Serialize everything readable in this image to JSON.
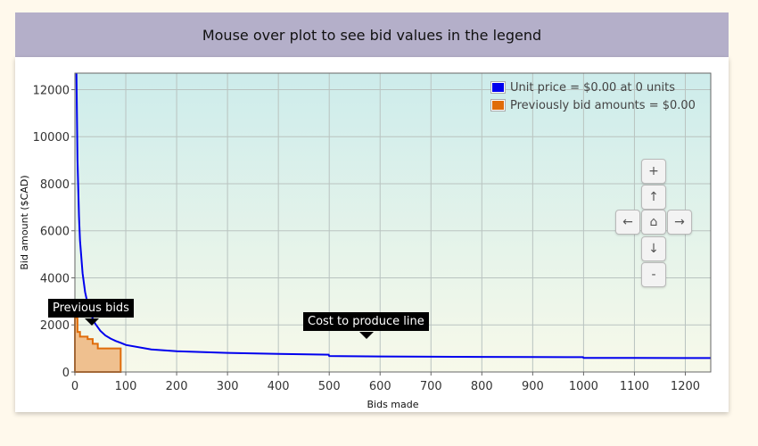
{
  "header": {
    "title": "Mouse over plot to see bid values in the legend"
  },
  "legend": {
    "items": [
      {
        "label": "Unit price = $0.00 at 0 units",
        "color": "#0000ee"
      },
      {
        "label": "Previously bid amounts = $0.00",
        "color": "#e06c0a"
      }
    ]
  },
  "controls": {
    "zoom_in": "+",
    "up": "↑",
    "left": "←",
    "home": "⌂",
    "right": "→",
    "down": "↓",
    "zoom_out": "-"
  },
  "annotations": {
    "previous_bids": "Previous bids",
    "cost_line": "Cost to produce line"
  },
  "chart_data": {
    "type": "line",
    "xlabel": "Bids made",
    "ylabel": "Bid amount ($CAD)",
    "xlim": [
      0,
      1250
    ],
    "ylim": [
      0,
      12700
    ],
    "xticks": [
      0,
      100,
      200,
      300,
      400,
      500,
      600,
      700,
      800,
      900,
      1000,
      1100,
      1200
    ],
    "yticks": [
      0,
      2000,
      4000,
      6000,
      8000,
      10000,
      12000
    ],
    "grid": true,
    "legend_position": "top-right",
    "background_gradient": [
      "#cdeceb",
      "#f7f9ea"
    ],
    "series": [
      {
        "name": "Unit price",
        "kind": "line",
        "color": "#0000ee",
        "x": [
          3,
          5,
          8,
          10,
          15,
          20,
          25,
          30,
          40,
          50,
          60,
          70,
          80,
          90,
          97,
          100,
          150,
          200,
          300,
          400,
          499,
          500,
          600,
          700,
          800,
          900,
          999,
          1000,
          1100,
          1200,
          1250
        ],
        "y": [
          12700,
          9000,
          6600,
          5600,
          4200,
          3400,
          2900,
          2500,
          2050,
          1750,
          1550,
          1420,
          1320,
          1240,
          1180,
          1150,
          960,
          880,
          810,
          770,
          735,
          680,
          660,
          650,
          640,
          635,
          630,
          600,
          595,
          590,
          590
        ]
      },
      {
        "name": "Previously bid amounts",
        "kind": "step-area",
        "color": "#e06c0a",
        "x": [
          0,
          5,
          10,
          25,
          35,
          45,
          90
        ],
        "y": [
          2300,
          1700,
          1500,
          1400,
          1200,
          1000,
          0
        ]
      }
    ]
  }
}
